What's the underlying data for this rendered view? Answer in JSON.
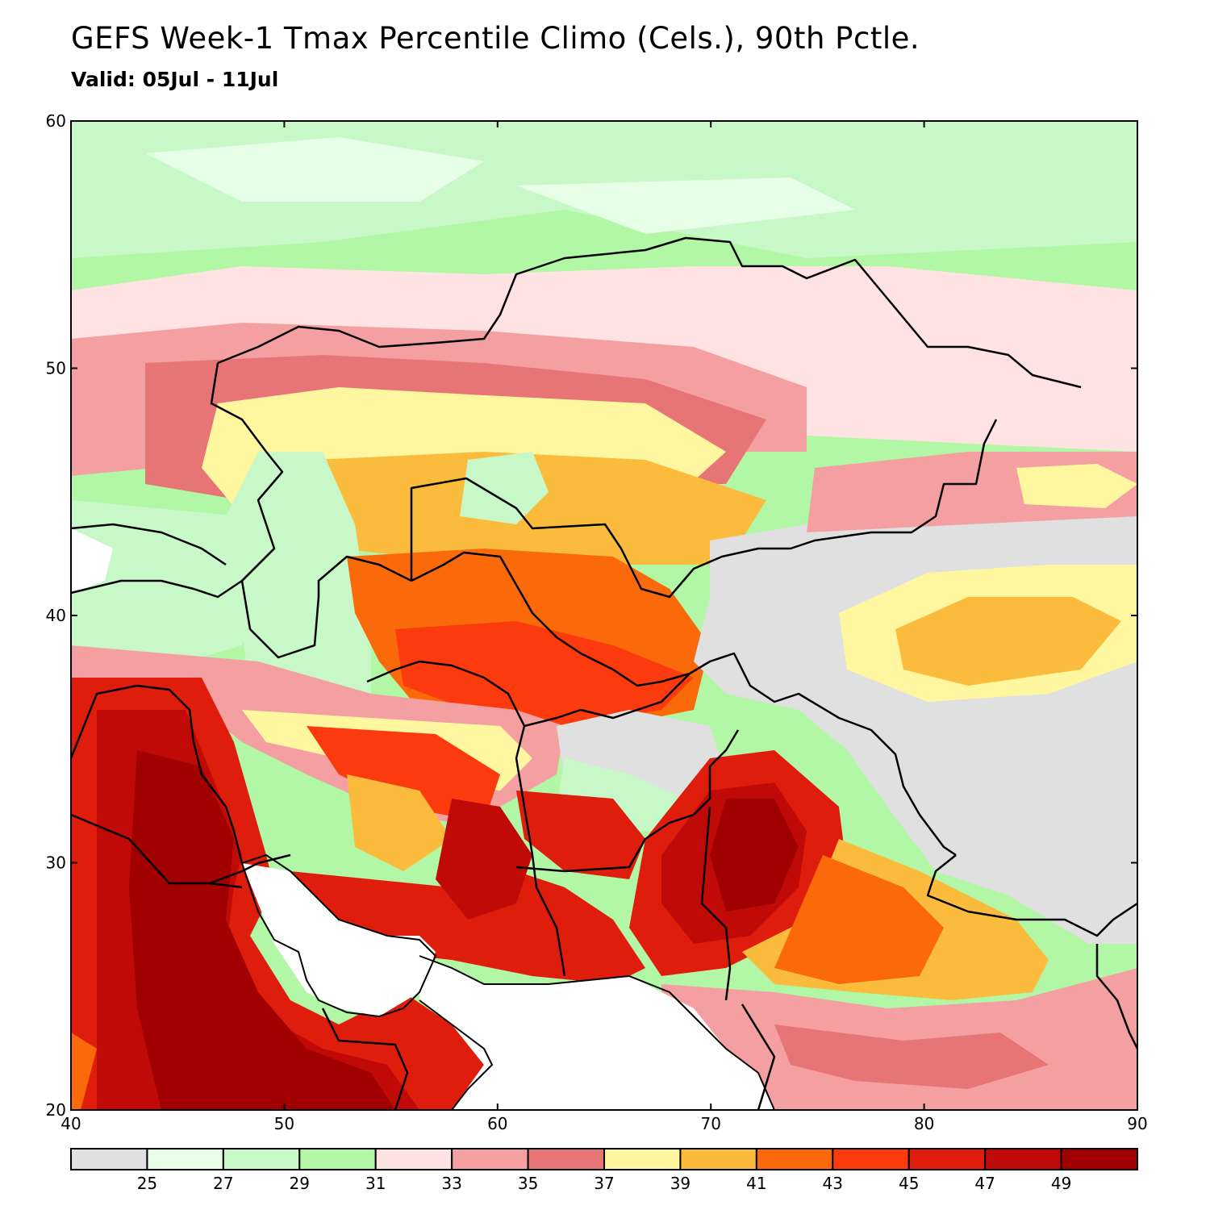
{
  "title": "GEFS Week-1 Tmax Percentile Climo (Cels.), 90th Pctle.",
  "subtitle": "Valid: 05Jul - 11Jul",
  "map": {
    "lon_range": [
      40,
      90
    ],
    "lat_range": [
      20,
      60
    ],
    "lon_ticks": [
      "40",
      "50",
      "60",
      "70",
      "80",
      "90"
    ],
    "lat_ticks": [
      "20",
      "30",
      "40",
      "50",
      "60"
    ]
  },
  "colorbar": {
    "colors": [
      "#e0e0e0",
      "#e6ffe6",
      "#c8f7c8",
      "#b2f7a6",
      "#ffe3e3",
      "#f4a0a2",
      "#e87576",
      "#fff7a0",
      "#fbbc3d",
      "#fb6a0a",
      "#fb3a0e",
      "#df1d0c",
      "#c00a08",
      "#a00000"
    ],
    "labels": [
      "25",
      "27",
      "29",
      "31",
      "33",
      "35",
      "37",
      "39",
      "41",
      "43",
      "45",
      "47",
      "49"
    ]
  },
  "icons": [
    "map-plot"
  ]
}
